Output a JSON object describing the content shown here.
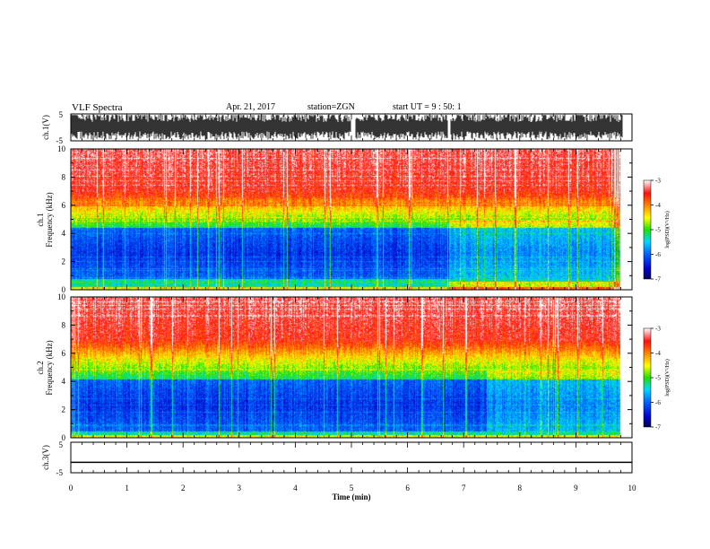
{
  "header": {
    "title": "VLF Spectra",
    "date": "Apr. 21, 2017",
    "station": "station=ZGN",
    "start_ut": "start UT =   9 : 50: 1"
  },
  "chart_data": [
    {
      "type": "line",
      "panel": "ch1-waveform",
      "ylabel": "ch.1(V)",
      "ylim": [
        -5,
        5
      ],
      "yticks": [
        "5",
        "-5"
      ],
      "xlim": [
        0,
        10
      ],
      "gaps_min": [
        [
          5.0,
          5.07
        ],
        [
          6.72,
          6.76
        ]
      ]
    },
    {
      "type": "heatmap",
      "panel": "ch1-spectrogram",
      "ylabel": [
        "ch.1",
        "Frequency (kHz)"
      ],
      "ylim": [
        0,
        10
      ],
      "yticks": [
        "0",
        "2",
        "4",
        "6",
        "8",
        "10"
      ],
      "xlim": [
        0,
        10
      ],
      "data_end_min": 9.8,
      "regime_change_min": 6.72,
      "low_level_band_khz": [
        0.8,
        4.4
      ],
      "colorbar": {
        "label": "log(PSD)(V²/Hz)",
        "range": [
          -7,
          -3
        ],
        "ticks": [
          "-3",
          "-4",
          "-5",
          "-6",
          "-7"
        ]
      }
    },
    {
      "type": "heatmap",
      "panel": "ch2-spectrogram",
      "ylabel": [
        "ch.2",
        "Frequency (kHz)"
      ],
      "ylim": [
        0,
        10
      ],
      "yticks": [
        "0",
        "2",
        "4",
        "6",
        "8",
        "10"
      ],
      "xlim": [
        0,
        10
      ],
      "data_end_min": 9.8,
      "regime_change_min": 7.4,
      "low_level_band_khz": [
        0.5,
        4.2
      ],
      "colorbar": {
        "label": "log(PSD)(V²/Hz)",
        "range": [
          -7,
          -3
        ],
        "ticks": [
          "-3",
          "-4",
          "-5",
          "-6",
          "-7"
        ]
      }
    },
    {
      "type": "line",
      "panel": "ch3-waveform",
      "ylabel": "ch.3(V)",
      "ylim": [
        -5,
        5
      ],
      "yticks": [
        "5",
        "-5"
      ],
      "xlim": [
        0,
        10
      ],
      "constant_value": -1.6
    }
  ],
  "xaxis": {
    "label": "Time (min)",
    "ticks": [
      "0",
      "1",
      "2",
      "3",
      "4",
      "5",
      "6",
      "7",
      "8",
      "9",
      "10"
    ]
  },
  "colors": {
    "colormap": [
      "#0000a0",
      "#0040ff",
      "#00c8ff",
      "#00f0c8",
      "#30e000",
      "#ffff00",
      "#ff8000",
      "#ff2020",
      "#ffb0b0"
    ]
  }
}
